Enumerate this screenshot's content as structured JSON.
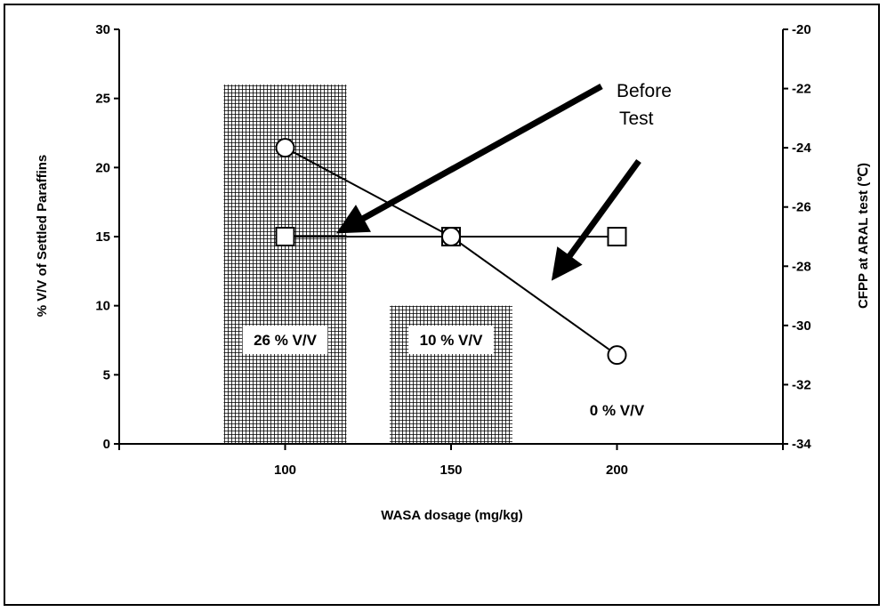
{
  "chart_data": {
    "type": "bar",
    "x_axis": {
      "label": "WASA dosage  (mg/kg)",
      "range": [
        50,
        250
      ],
      "ticks": [
        100,
        150,
        200
      ]
    },
    "y_left": {
      "label": "% V/V of Settled Paraffins",
      "range": [
        0,
        30
      ],
      "ticks": [
        0,
        5,
        10,
        15,
        20,
        25,
        30
      ]
    },
    "y_right": {
      "label": "CFPP at ARAL test  (℃)",
      "range": [
        -34,
        -20
      ],
      "ticks": [
        -34,
        -32,
        -30,
        -28,
        -26,
        -24,
        -22,
        -20
      ]
    },
    "bars": {
      "axis": "left",
      "categories": [
        100,
        150,
        200
      ],
      "values": [
        26,
        10,
        0
      ],
      "labels": [
        "26 % V/V",
        "10 % V/V",
        "0 % V/V"
      ],
      "fill": "crosshatch"
    },
    "series": [
      {
        "axis": "right",
        "marker": "circle",
        "x": [
          100,
          150,
          200
        ],
        "y": [
          -24,
          -27,
          -31
        ]
      },
      {
        "axis": "right",
        "marker": "square",
        "x": [
          100,
          150,
          200
        ],
        "y": [
          -27,
          -27,
          -27
        ]
      }
    ],
    "annotation": {
      "text_lines": [
        "Before",
        "Test"
      ]
    },
    "grid": false,
    "legend": "none",
    "colors": {
      "ink": "#000000",
      "background": "#ffffff"
    }
  }
}
